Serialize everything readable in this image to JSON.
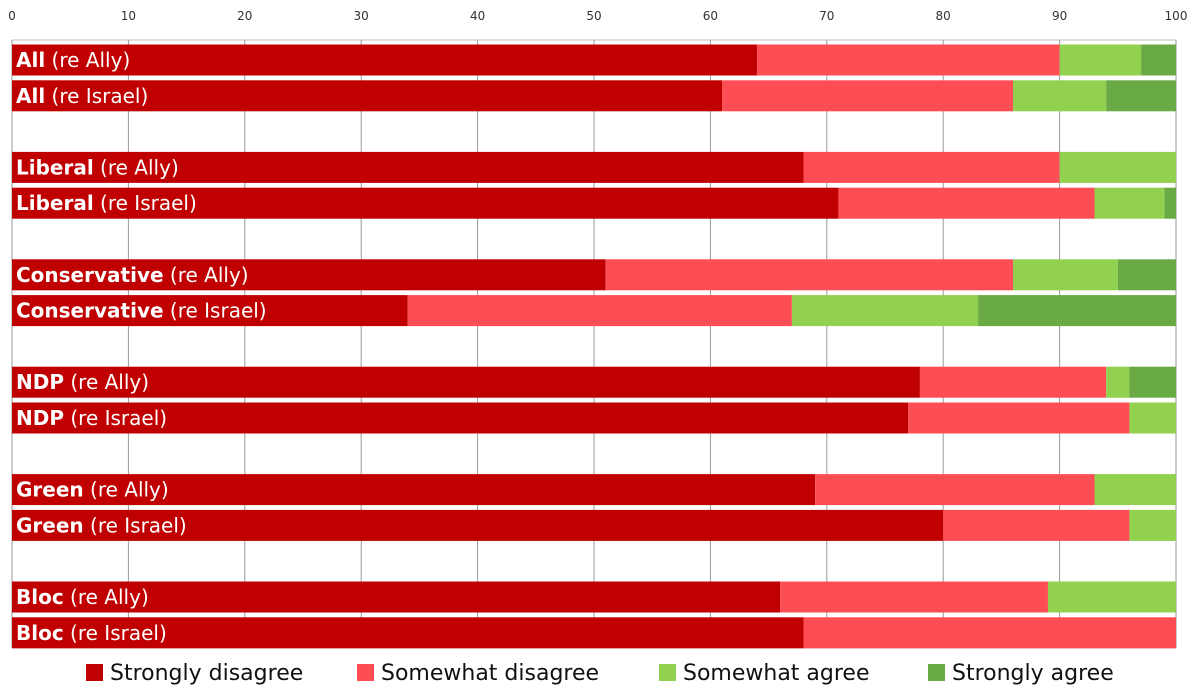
{
  "chart_data": {
    "type": "bar",
    "orientation": "horizontal",
    "stacked": true,
    "title": "",
    "xlabel": "",
    "ylabel": "",
    "xlim": [
      0,
      100
    ],
    "x_ticks": [
      "0",
      "10",
      "20",
      "30",
      "40",
      "50",
      "60",
      "70",
      "80",
      "90",
      "100"
    ],
    "x_axis_position": "top",
    "grid": true,
    "legend_position": "bottom",
    "groups": [
      {
        "party": "All",
        "rows": [
          {
            "party": "All",
            "suffix": " (re Ally)",
            "values": [
              64,
              26,
              7,
              3
            ]
          },
          {
            "party": "All",
            "suffix": " (re Israel)",
            "values": [
              61,
              25,
              8,
              6
            ]
          }
        ]
      },
      {
        "party": "Liberal",
        "rows": [
          {
            "party": "Liberal",
            "suffix": " (re Ally)",
            "values": [
              68,
              22,
              10,
              0
            ]
          },
          {
            "party": "Liberal",
            "suffix": " (re Israel)",
            "values": [
              71,
              22,
              6,
              1
            ]
          }
        ]
      },
      {
        "party": "Conservative",
        "rows": [
          {
            "party": "Conservative",
            "suffix": " (re Ally)",
            "values": [
              51,
              35,
              9,
              5
            ]
          },
          {
            "party": "Conservative",
            "suffix": " (re Israel)",
            "values": [
              34,
              33,
              16,
              17
            ]
          }
        ]
      },
      {
        "party": "NDP",
        "rows": [
          {
            "party": "NDP",
            "suffix": " (re Ally)",
            "values": [
              78,
              16,
              2,
              4
            ]
          },
          {
            "party": "NDP",
            "suffix": " (re Israel)",
            "values": [
              77,
              19,
              4,
              0
            ]
          }
        ]
      },
      {
        "party": "Green",
        "rows": [
          {
            "party": "Green",
            "suffix": " (re Ally)",
            "values": [
              69,
              24,
              7,
              0
            ]
          },
          {
            "party": "Green",
            "suffix": " (re Israel)",
            "values": [
              80,
              16,
              4,
              0
            ]
          }
        ]
      },
      {
        "party": "Bloc",
        "rows": [
          {
            "party": "Bloc",
            "suffix": " (re Ally)",
            "values": [
              66,
              23,
              11,
              0
            ]
          },
          {
            "party": "Bloc",
            "suffix": " (re Israel)",
            "values": [
              68,
              32,
              0,
              0
            ]
          }
        ]
      }
    ],
    "series": [
      {
        "name": "Strongly disagree",
        "color": "#c00000"
      },
      {
        "name": "Somewhat disagree",
        "color": "#ff4d55"
      },
      {
        "name": "Somewhat agree",
        "color": "#92d050"
      },
      {
        "name": "Strongly agree",
        "color": "#6aaa45"
      }
    ]
  }
}
